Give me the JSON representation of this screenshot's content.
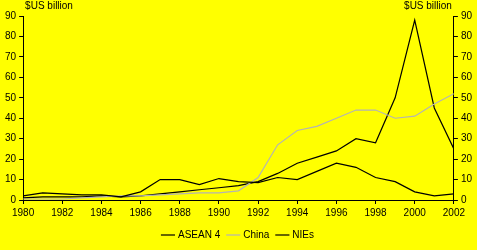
{
  "chart_data": {
    "type": "line",
    "ylabel": "$US billion",
    "y2label": "$US billion",
    "x": [
      1980,
      1981,
      1982,
      1983,
      1984,
      1985,
      1986,
      1987,
      1988,
      1989,
      1990,
      1991,
      1992,
      1993,
      1994,
      1995,
      1996,
      1997,
      1998,
      1999,
      2000,
      2001,
      2002
    ],
    "series": [
      {
        "name": "ASEAN 4",
        "color": "#000000",
        "values": [
          2,
          3.5,
          3,
          2.5,
          2.5,
          1.5,
          4,
          10,
          10,
          7.5,
          10.5,
          9,
          8.5,
          11,
          10,
          14,
          18,
          16,
          11,
          9,
          4,
          2,
          3
        ]
      },
      {
        "name": "China",
        "color": "#b4b4b4",
        "values": [
          0.5,
          0.5,
          0.5,
          1,
          1.5,
          2,
          2,
          2.5,
          3,
          3.5,
          3.5,
          4.5,
          11,
          27,
          34,
          36,
          40,
          44,
          44,
          40,
          41,
          47,
          52
        ]
      },
      {
        "name": "NIEs",
        "color": "#000000",
        "values": [
          1,
          1.5,
          1.5,
          1.5,
          2,
          1.5,
          2,
          3,
          4,
          5,
          6,
          7,
          9,
          13,
          18,
          21,
          24,
          30,
          28,
          50,
          88,
          45,
          25
        ]
      }
    ],
    "xlim": [
      1980,
      2002
    ],
    "xticks": [
      1980,
      1982,
      1984,
      1986,
      1988,
      1990,
      1992,
      1994,
      1996,
      1998,
      2000,
      2002
    ],
    "ylim": [
      0,
      90
    ],
    "yticks": [
      0,
      10,
      20,
      30,
      40,
      50,
      60,
      70,
      80,
      90
    ],
    "y2lim": [
      0,
      90
    ],
    "y2ticks": [
      0,
      10,
      20,
      30,
      40,
      50,
      60,
      70,
      80,
      90
    ],
    "grid": false,
    "legend": "bottom"
  }
}
